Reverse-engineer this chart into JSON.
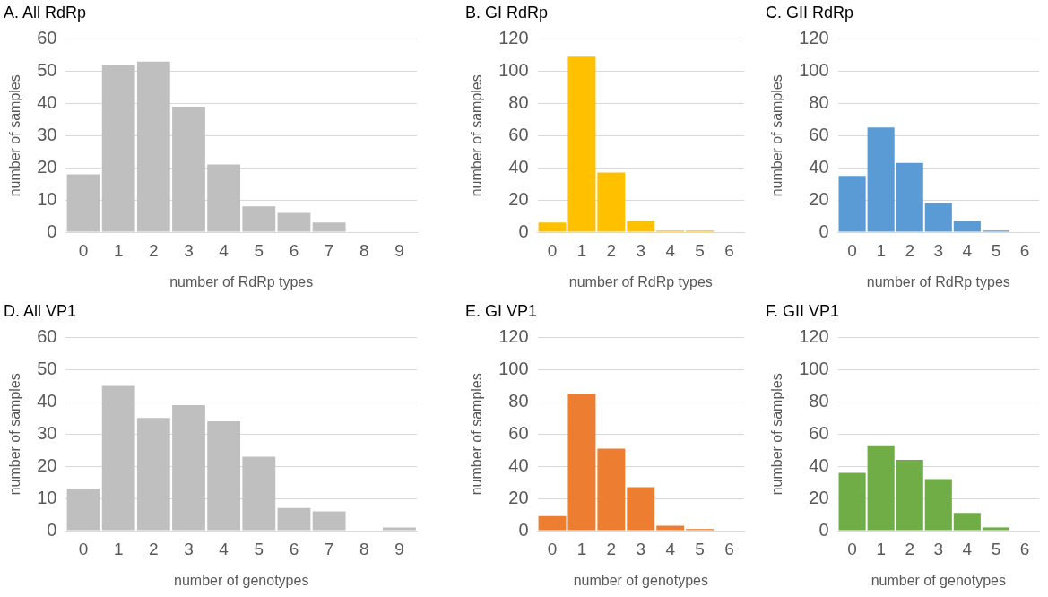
{
  "chart_data": [
    {
      "type": "bar",
      "title": "A. All RdRp",
      "xlabel": "number of RdRp types",
      "ylabel": "number of samples",
      "categories": [
        "0",
        "1",
        "2",
        "3",
        "4",
        "5",
        "6",
        "7",
        "8",
        "9"
      ],
      "values": [
        18,
        52,
        53,
        39,
        21,
        8,
        6,
        3,
        0,
        0
      ],
      "color": "#bfbfbf",
      "ylim": [
        0,
        60
      ],
      "yticks": [
        0,
        10,
        20,
        30,
        40,
        50,
        60
      ],
      "grid": "y"
    },
    {
      "type": "bar",
      "title": "B. GI RdRp",
      "xlabel": "number of RdRp types",
      "ylabel": "number of samples",
      "categories": [
        "0",
        "1",
        "2",
        "3",
        "4",
        "5",
        "6"
      ],
      "values": [
        6,
        109,
        37,
        7,
        1,
        1,
        0
      ],
      "color": "#ffc000",
      "ylim": [
        0,
        120
      ],
      "yticks": [
        0,
        20,
        40,
        60,
        80,
        100,
        120
      ],
      "grid": "y"
    },
    {
      "type": "bar",
      "title": "C. GII RdRp",
      "xlabel": "number of RdRp types",
      "ylabel": "number of samples",
      "categories": [
        "0",
        "1",
        "2",
        "3",
        "4",
        "5",
        "6"
      ],
      "values": [
        35,
        65,
        43,
        18,
        7,
        1,
        0
      ],
      "color": "#5b9bd5",
      "ylim": [
        0,
        120
      ],
      "yticks": [
        0,
        20,
        40,
        60,
        80,
        100,
        120
      ],
      "grid": "y"
    },
    {
      "type": "bar",
      "title": "D. All VP1",
      "xlabel": "number of genotypes",
      "ylabel": "number of samples",
      "categories": [
        "0",
        "1",
        "2",
        "3",
        "4",
        "5",
        "6",
        "7",
        "8",
        "9"
      ],
      "values": [
        13,
        45,
        35,
        39,
        34,
        23,
        7,
        6,
        0,
        1
      ],
      "color": "#bfbfbf",
      "ylim": [
        0,
        60
      ],
      "yticks": [
        0,
        10,
        20,
        30,
        40,
        50,
        60
      ],
      "grid": "y"
    },
    {
      "type": "bar",
      "title": "E. GI VP1",
      "xlabel": "number of genotypes",
      "ylabel": "number of samples",
      "categories": [
        "0",
        "1",
        "2",
        "3",
        "4",
        "5",
        "6"
      ],
      "values": [
        9,
        85,
        51,
        27,
        3,
        1,
        0
      ],
      "color": "#ed7d31",
      "ylim": [
        0,
        120
      ],
      "yticks": [
        0,
        20,
        40,
        60,
        80,
        100,
        120
      ],
      "grid": "y"
    },
    {
      "type": "bar",
      "title": "F. GII VP1",
      "xlabel": "number of genotypes",
      "ylabel": "number of samples",
      "categories": [
        "0",
        "1",
        "2",
        "3",
        "4",
        "5",
        "6"
      ],
      "values": [
        36,
        53,
        44,
        32,
        11,
        2,
        0
      ],
      "color": "#70ad47",
      "ylim": [
        0,
        120
      ],
      "yticks": [
        0,
        20,
        40,
        60,
        80,
        100,
        120
      ],
      "grid": "y"
    }
  ]
}
